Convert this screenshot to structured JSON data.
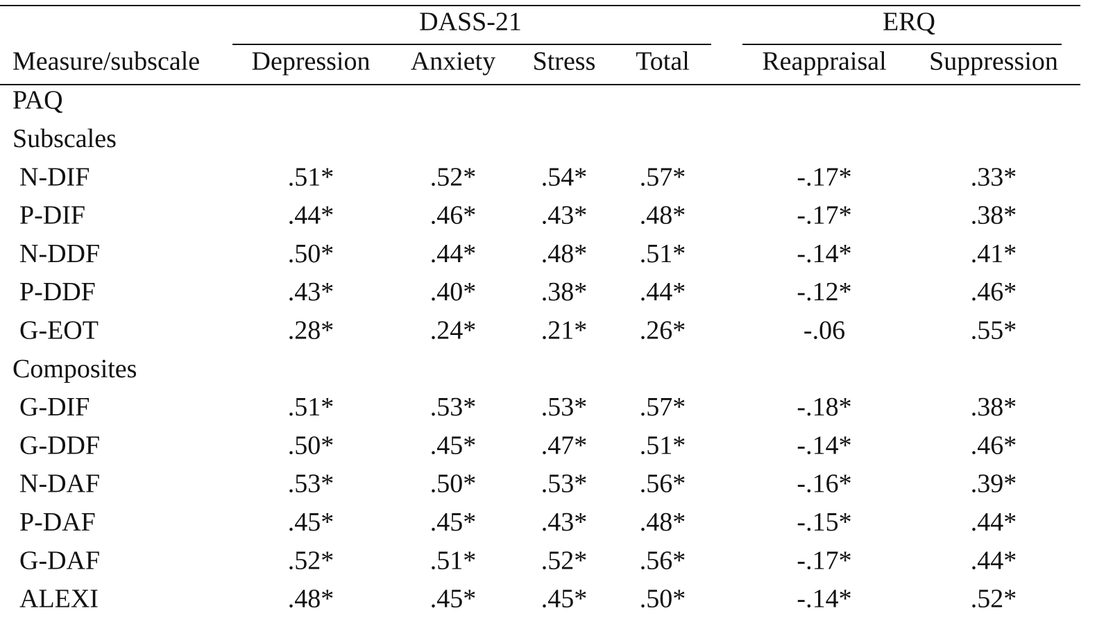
{
  "table": {
    "group_headers": [
      "DASS-21",
      "ERQ"
    ],
    "columns": [
      "Measure/subscale",
      "Depression",
      "Anxiety",
      "Stress",
      "Total",
      "Reappraisal",
      "Suppression"
    ],
    "rows": [
      [
        "PAQ"
      ],
      [
        "Subscales"
      ],
      [
        "N-DIF",
        ".51*",
        ".52*",
        ".54*",
        ".57*",
        "-.17*",
        ".33*"
      ],
      [
        "P-DIF",
        ".44*",
        ".46*",
        ".43*",
        ".48*",
        "-.17*",
        ".38*"
      ],
      [
        "N-DDF",
        ".50*",
        ".44*",
        ".48*",
        ".51*",
        "-.14*",
        ".41*"
      ],
      [
        "P-DDF",
        ".43*",
        ".40*",
        ".38*",
        ".44*",
        "-.12*",
        ".46*"
      ],
      [
        "G-EOT",
        ".28*",
        ".24*",
        ".21*",
        ".26*",
        "-.06",
        ".55*"
      ],
      [
        "Composites"
      ],
      [
        "G-DIF",
        ".51*",
        ".53*",
        ".53*",
        ".57*",
        "-.18*",
        ".38*"
      ],
      [
        "G-DDF",
        ".50*",
        ".45*",
        ".47*",
        ".51*",
        "-.14*",
        ".46*"
      ],
      [
        "N-DAF",
        ".53*",
        ".50*",
        ".53*",
        ".56*",
        "-.16*",
        ".39*"
      ],
      [
        "P-DAF",
        ".45*",
        ".45*",
        ".43*",
        ".48*",
        "-.15*",
        ".44*"
      ],
      [
        "G-DAF",
        ".52*",
        ".51*",
        ".52*",
        ".56*",
        "-.17*",
        ".44*"
      ],
      [
        "ALEXI",
        ".48*",
        ".45*",
        ".45*",
        ".50*",
        "-.14*",
        ".52*"
      ]
    ]
  }
}
